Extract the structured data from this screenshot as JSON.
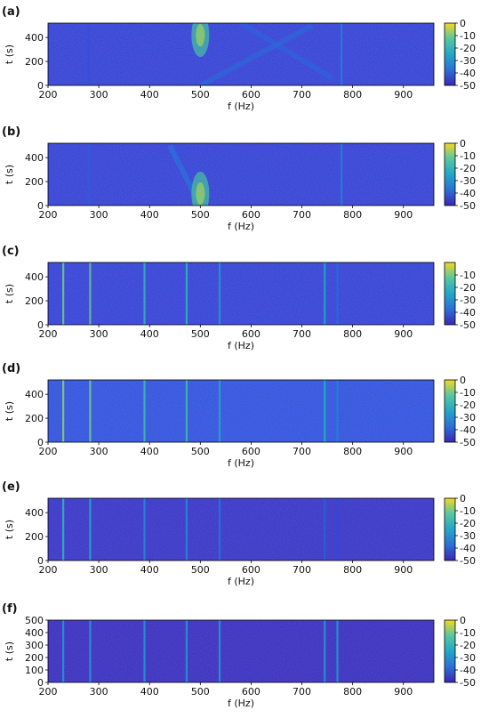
{
  "chart_data": [
    {
      "panel": "(a)",
      "type": "heatmap",
      "xlabel": "f (Hz)",
      "ylabel": "t (s)",
      "xlim": [
        200,
        960
      ],
      "ylim": [
        0,
        520
      ],
      "xticks": [
        200,
        300,
        400,
        500,
        600,
        700,
        800,
        900
      ],
      "yticks": [
        0,
        200,
        400
      ],
      "colorbar": {
        "range": [
          -50,
          0
        ],
        "ticks": [
          0,
          -10,
          -20,
          -30,
          -40,
          -50
        ]
      },
      "background_db": -42,
      "lines": [
        {
          "f": 280,
          "db": -38
        },
        {
          "f": 778,
          "db": -30
        }
      ],
      "features": [
        {
          "kind": "diagonal",
          "f_start": 500,
          "f_end": 720,
          "t_start": 0,
          "t_end": 500,
          "db": -33
        },
        {
          "kind": "diagonal",
          "f_start": 580,
          "f_end": 760,
          "t_start": 520,
          "t_end": 60,
          "db": -34
        },
        {
          "kind": "hotspot",
          "f": 500,
          "t": 420,
          "db": -15
        }
      ]
    },
    {
      "panel": "(b)",
      "type": "heatmap",
      "xlabel": "f (Hz)",
      "ylabel": "t (s)",
      "xlim": [
        200,
        960
      ],
      "ylim": [
        0,
        520
      ],
      "xticks": [
        200,
        300,
        400,
        500,
        600,
        700,
        800,
        900
      ],
      "yticks": [
        0,
        200,
        400
      ],
      "colorbar": {
        "range": [
          -50,
          0
        ],
        "ticks": [
          0,
          -10,
          -20,
          -30,
          -40,
          -50
        ]
      },
      "background_db": -42,
      "lines": [
        {
          "f": 280,
          "db": -36
        },
        {
          "f": 778,
          "db": -30
        }
      ],
      "features": [
        {
          "kind": "diagonal",
          "f_start": 440,
          "f_end": 500,
          "t_start": 500,
          "t_end": 0,
          "db": -30
        },
        {
          "kind": "hotspot",
          "f": 500,
          "t": 100,
          "db": -15
        }
      ]
    },
    {
      "panel": "(c)",
      "type": "heatmap",
      "xlabel": "f (Hz)",
      "ylabel": "t (s)",
      "xlim": [
        200,
        960
      ],
      "ylim": [
        0,
        520
      ],
      "xticks": [
        200,
        300,
        400,
        500,
        600,
        700,
        800,
        900
      ],
      "yticks": [
        0,
        200,
        400
      ],
      "colorbar": {
        "range": [
          -50,
          0
        ],
        "ticks": [
          -10,
          -20,
          -30,
          -40,
          -50
        ]
      },
      "background_db": -42,
      "lines": [
        {
          "f": 230,
          "db": -10
        },
        {
          "f": 283,
          "db": -12
        },
        {
          "f": 390,
          "db": -18
        },
        {
          "f": 473,
          "db": -18
        },
        {
          "f": 538,
          "db": -25
        },
        {
          "f": 745,
          "db": -22
        },
        {
          "f": 770,
          "db": -34
        }
      ],
      "features": []
    },
    {
      "panel": "(d)",
      "type": "heatmap",
      "xlabel": "f (Hz)",
      "ylabel": "t (s)",
      "xlim": [
        200,
        960
      ],
      "ylim": [
        0,
        520
      ],
      "xticks": [
        200,
        300,
        400,
        500,
        600,
        700,
        800,
        900
      ],
      "yticks": [
        0,
        200,
        400
      ],
      "colorbar": {
        "range": [
          -50,
          0
        ],
        "ticks": [
          0,
          -10,
          -20,
          -30,
          -40,
          -50
        ]
      },
      "background_db": -38,
      "lines": [
        {
          "f": 230,
          "db": -8
        },
        {
          "f": 283,
          "db": -10
        },
        {
          "f": 390,
          "db": -16
        },
        {
          "f": 473,
          "db": -16
        },
        {
          "f": 538,
          "db": -22
        },
        {
          "f": 745,
          "db": -20
        },
        {
          "f": 770,
          "db": -30
        }
      ],
      "features": []
    },
    {
      "panel": "(e)",
      "type": "heatmap",
      "xlabel": "f (Hz)",
      "ylabel": "t (s)",
      "xlim": [
        200,
        960
      ],
      "ylim": [
        0,
        520
      ],
      "xticks": [
        200,
        300,
        400,
        500,
        600,
        700,
        800,
        900
      ],
      "yticks": [
        0,
        200,
        400
      ],
      "colorbar": {
        "range": [
          -50,
          0
        ],
        "ticks": [
          0,
          -10,
          -20,
          -30,
          -40,
          -50
        ]
      },
      "background_db": -46,
      "lines": [
        {
          "f": 230,
          "db": -18
        },
        {
          "f": 283,
          "db": -22
        },
        {
          "f": 390,
          "db": -28
        },
        {
          "f": 473,
          "db": -28
        },
        {
          "f": 538,
          "db": -32
        },
        {
          "f": 745,
          "db": -36
        },
        {
          "f": 770,
          "db": -40
        }
      ],
      "features": []
    },
    {
      "panel": "(f)",
      "type": "heatmap",
      "xlabel": "f (Hz)",
      "ylabel": "t (s)",
      "xlim": [
        200,
        960
      ],
      "ylim": [
        0,
        500
      ],
      "xticks": [
        200,
        300,
        400,
        500,
        600,
        700,
        800,
        900
      ],
      "yticks": [
        0,
        100,
        200,
        300,
        400,
        500
      ],
      "colorbar": {
        "range": [
          -50,
          0
        ],
        "ticks": [
          0,
          -10,
          -20,
          -30,
          -40,
          -50
        ]
      },
      "background_db": -48,
      "lines": [
        {
          "f": 230,
          "db": -25
        },
        {
          "f": 283,
          "db": -25
        },
        {
          "f": 390,
          "db": -25
        },
        {
          "f": 473,
          "db": -25
        },
        {
          "f": 538,
          "db": -25
        },
        {
          "f": 745,
          "db": -25
        },
        {
          "f": 770,
          "db": -25
        }
      ],
      "features": []
    }
  ]
}
